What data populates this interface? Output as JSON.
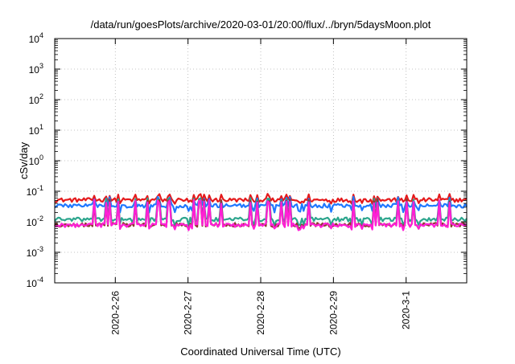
{
  "chart_data": {
    "type": "line",
    "title": "/data/run/goesPlots/archive/2020-03-01/20:00/flux/../bryn/5daysMoon.plot",
    "xlabel": "Coordinated Universal Time (UTC)",
    "ylabel": "cSv/day",
    "yscale": "log",
    "ylim": [
      0.0001,
      10000
    ],
    "xlim": [
      "2020-02-25 04:00",
      "2020-03-01 20:00"
    ],
    "y_ticks": [
      {
        "value": 0.0001,
        "base": "10",
        "exp": "-4"
      },
      {
        "value": 0.001,
        "base": "10",
        "exp": "-3"
      },
      {
        "value": 0.01,
        "base": "10",
        "exp": "-2"
      },
      {
        "value": 0.1,
        "base": "10",
        "exp": "-1"
      },
      {
        "value": 1,
        "base": "10",
        "exp": "0"
      },
      {
        "value": 10,
        "base": "10",
        "exp": "1"
      },
      {
        "value": 100,
        "base": "10",
        "exp": "2"
      },
      {
        "value": 1000,
        "base": "10",
        "exp": "3"
      },
      {
        "value": 10000,
        "base": "10",
        "exp": "4"
      }
    ],
    "x_ticks": [
      {
        "value": "2020-02-26 00:00",
        "label": "2020-2-26"
      },
      {
        "value": "2020-02-27 00:00",
        "label": "2020-2-27"
      },
      {
        "value": "2020-02-28 00:00",
        "label": "2020-2-28"
      },
      {
        "value": "2020-02-29 00:00",
        "label": "2020-2-29"
      },
      {
        "value": "2020-03-01 00:00",
        "label": "2020-3-1"
      }
    ],
    "grid": true,
    "legend": "none",
    "series": [
      {
        "color": "#e41a1c",
        "base": 0.052,
        "spike": 0.075,
        "dip": 0.042
      },
      {
        "color": "#1f78ff",
        "base": 0.034,
        "spike": 0.06,
        "dip": 0.022
      },
      {
        "color": "#2ca58d",
        "base": 0.012,
        "spike": 0.055,
        "dip": 0.008
      },
      {
        "color": "#8e3b2f",
        "base": 0.008,
        "spike": 0.05,
        "dip": 0.0065
      },
      {
        "color": "#ff1fd6",
        "base": 0.0078,
        "spike": 0.048,
        "dip": 0.0058
      }
    ]
  }
}
